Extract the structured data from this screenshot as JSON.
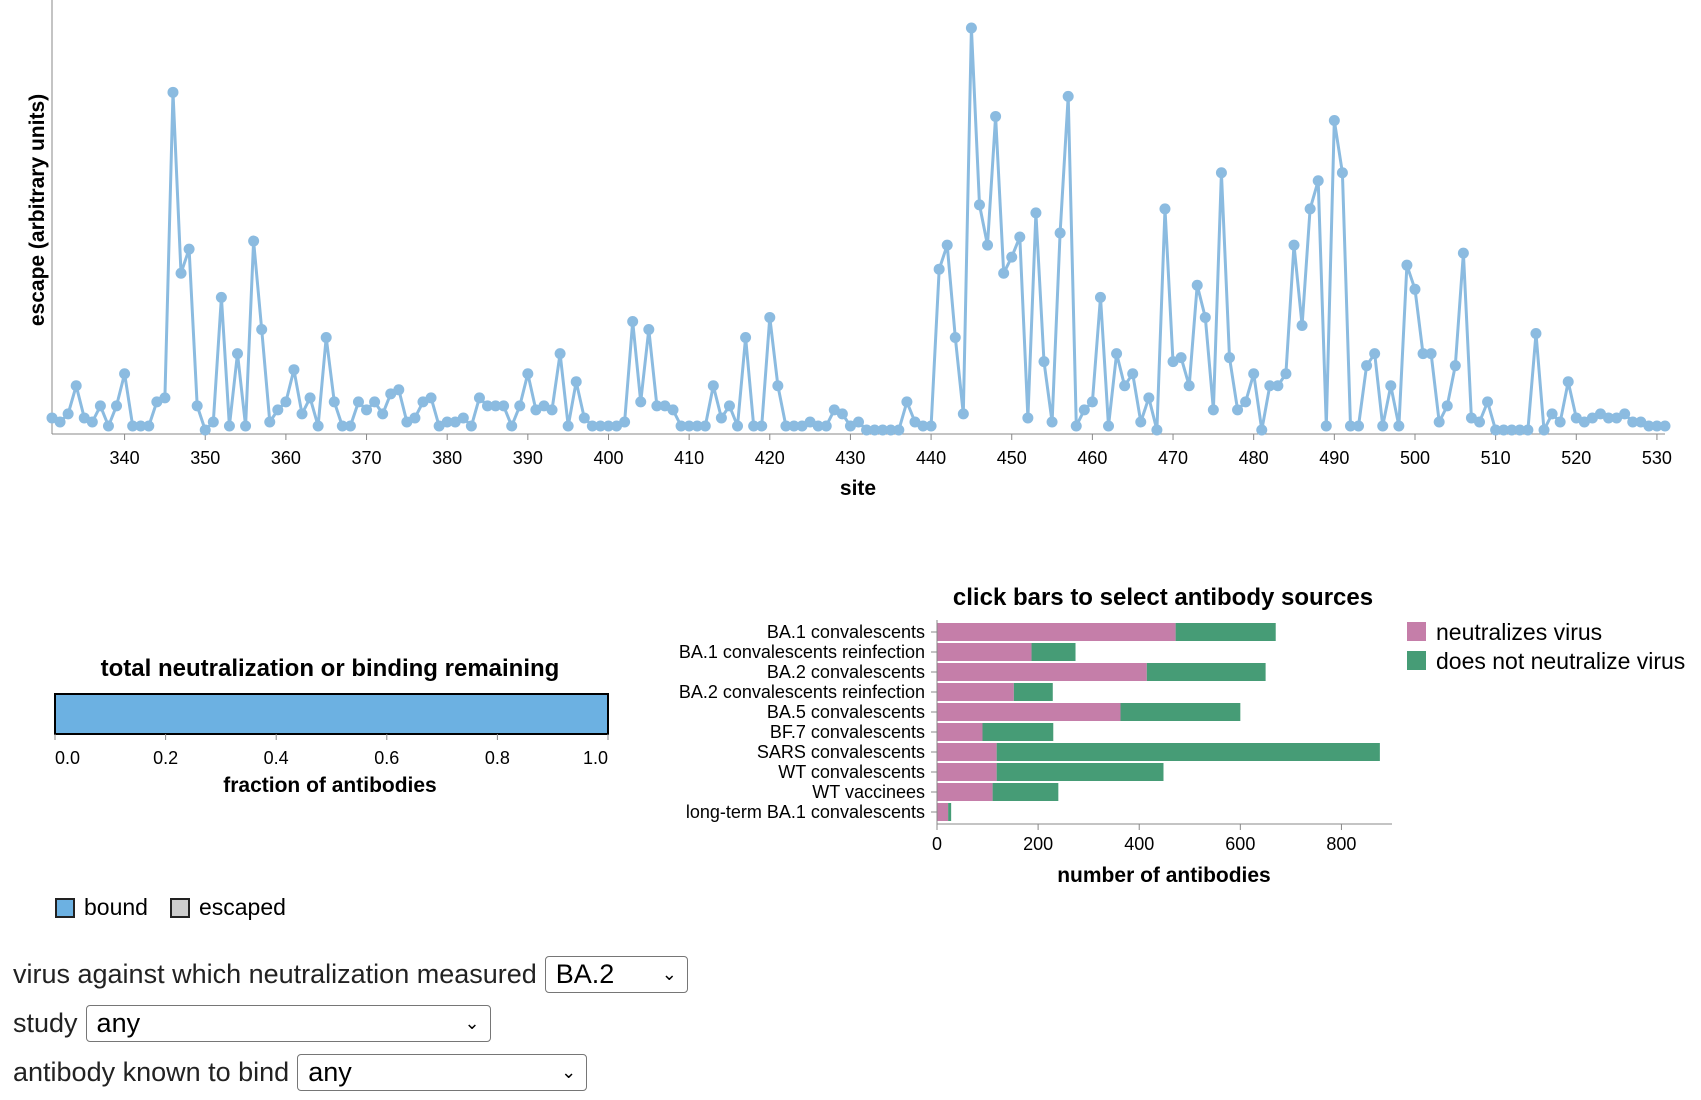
{
  "chart_data": [
    {
      "type": "line",
      "xlabel": "site",
      "ylabel": "escape (arbitrary units)",
      "xlim": [
        331,
        531
      ],
      "ylim": [
        0,
        1
      ],
      "xticks": [
        340,
        350,
        360,
        370,
        380,
        390,
        400,
        410,
        420,
        430,
        440,
        450,
        460,
        470,
        480,
        490,
        500,
        510,
        520,
        530
      ],
      "color": "#8bbbe0",
      "x": [
        331,
        332,
        333,
        334,
        335,
        336,
        337,
        338,
        339,
        340,
        341,
        342,
        343,
        344,
        345,
        346,
        347,
        348,
        349,
        350,
        351,
        352,
        353,
        354,
        355,
        356,
        357,
        358,
        359,
        360,
        361,
        362,
        363,
        364,
        365,
        366,
        367,
        368,
        369,
        370,
        371,
        372,
        373,
        374,
        375,
        376,
        377,
        378,
        379,
        380,
        381,
        382,
        383,
        384,
        385,
        386,
        387,
        388,
        389,
        390,
        391,
        392,
        393,
        394,
        395,
        396,
        397,
        398,
        399,
        400,
        401,
        402,
        403,
        404,
        405,
        406,
        407,
        408,
        409,
        410,
        411,
        412,
        413,
        414,
        415,
        416,
        417,
        418,
        419,
        420,
        421,
        422,
        423,
        424,
        425,
        426,
        427,
        428,
        429,
        430,
        431,
        432,
        433,
        434,
        435,
        436,
        437,
        438,
        439,
        440,
        441,
        442,
        443,
        444,
        445,
        446,
        447,
        448,
        449,
        450,
        451,
        452,
        453,
        454,
        455,
        456,
        457,
        458,
        459,
        460,
        461,
        462,
        463,
        464,
        465,
        466,
        467,
        468,
        469,
        470,
        471,
        472,
        473,
        474,
        475,
        476,
        477,
        478,
        479,
        480,
        481,
        482,
        483,
        484,
        485,
        486,
        487,
        488,
        489,
        490,
        491,
        492,
        493,
        494,
        495,
        496,
        497,
        498,
        499,
        500,
        501,
        502,
        503,
        504,
        505,
        506,
        507,
        508,
        509,
        510,
        511,
        512,
        513,
        514,
        515,
        516,
        517,
        518,
        519,
        520,
        521,
        522,
        523,
        524,
        525,
        526,
        527,
        528,
        529,
        530,
        531
      ],
      "y": [
        0.03,
        0.02,
        0.04,
        0.11,
        0.03,
        0.02,
        0.06,
        0.01,
        0.06,
        0.14,
        0.01,
        0.01,
        0.01,
        0.07,
        0.08,
        0.84,
        0.39,
        0.45,
        0.06,
        0.0,
        0.02,
        0.33,
        0.01,
        0.19,
        0.01,
        0.47,
        0.25,
        0.02,
        0.05,
        0.07,
        0.15,
        0.04,
        0.08,
        0.01,
        0.23,
        0.07,
        0.01,
        0.01,
        0.07,
        0.05,
        0.07,
        0.04,
        0.09,
        0.1,
        0.02,
        0.03,
        0.07,
        0.08,
        0.01,
        0.02,
        0.02,
        0.03,
        0.01,
        0.08,
        0.06,
        0.06,
        0.06,
        0.01,
        0.06,
        0.14,
        0.05,
        0.06,
        0.05,
        0.19,
        0.01,
        0.12,
        0.03,
        0.01,
        0.01,
        0.01,
        0.01,
        0.02,
        0.27,
        0.07,
        0.25,
        0.06,
        0.06,
        0.05,
        0.01,
        0.01,
        0.01,
        0.01,
        0.11,
        0.03,
        0.06,
        0.01,
        0.23,
        0.01,
        0.01,
        0.28,
        0.11,
        0.01,
        0.01,
        0.01,
        0.02,
        0.01,
        0.01,
        0.05,
        0.04,
        0.01,
        0.02,
        0.0,
        0.0,
        0.0,
        0.0,
        0.0,
        0.07,
        0.02,
        0.01,
        0.01,
        0.4,
        0.46,
        0.23,
        0.04,
        1.0,
        0.56,
        0.46,
        0.78,
        0.39,
        0.43,
        0.48,
        0.03,
        0.54,
        0.17,
        0.02,
        0.49,
        0.83,
        0.01,
        0.05,
        0.07,
        0.33,
        0.01,
        0.19,
        0.11,
        0.14,
        0.02,
        0.08,
        0.0,
        0.55,
        0.17,
        0.18,
        0.11,
        0.36,
        0.28,
        0.05,
        0.64,
        0.18,
        0.05,
        0.07,
        0.14,
        0.0,
        0.11,
        0.11,
        0.14,
        0.46,
        0.26,
        0.55,
        0.62,
        0.01,
        0.77,
        0.64,
        0.01,
        0.01,
        0.16,
        0.19,
        0.01,
        0.11,
        0.01,
        0.41,
        0.35,
        0.19,
        0.19,
        0.02,
        0.06,
        0.16,
        0.44,
        0.03,
        0.02,
        0.07,
        0.0,
        0.0,
        0.0,
        0.0,
        0.0,
        0.24,
        0.0,
        0.04,
        0.02,
        0.12,
        0.03,
        0.02,
        0.03,
        0.04,
        0.03,
        0.03,
        0.04,
        0.02,
        0.02,
        0.01,
        0.01,
        0.01
      ]
    },
    {
      "type": "bar",
      "orientation": "horizontal",
      "stacked": true,
      "title": "click bars to select antibody sources",
      "xlabel": "number of antibodies",
      "xlim": [
        0,
        900
      ],
      "xticks": [
        0,
        200,
        400,
        600,
        800
      ],
      "legend_position": "right",
      "categories": [
        "BA.1 convalescents",
        "BA.1 convalescents reinfection",
        "BA.2 convalescents",
        "BA.2 convalescents reinfection",
        "BA.5 convalescents",
        "BF.7 convalescents",
        "SARS convalescents",
        "WT convalescents",
        "WT vaccinees",
        "long-term BA.1 convalescents"
      ],
      "series": [
        {
          "name": "neutralizes virus",
          "color": "#c57ea9",
          "values": [
            472,
            187,
            415,
            152,
            363,
            90,
            118,
            118,
            110,
            22
          ]
        },
        {
          "name": "does not neutralize virus",
          "color": "#469c76",
          "values": [
            198,
            87,
            235,
            77,
            237,
            140,
            758,
            330,
            130,
            6
          ]
        }
      ]
    },
    {
      "type": "bar",
      "orientation": "horizontal",
      "stacked": true,
      "title": "total neutralization or binding remaining",
      "xlabel": "fraction of antibodies",
      "xlim": [
        0,
        1
      ],
      "xticks": [
        "0.0",
        "0.2",
        "0.4",
        "0.6",
        "0.8",
        "1.0"
      ],
      "series": [
        {
          "name": "bound",
          "color": "#6cb1e2",
          "values": [
            1.0
          ]
        },
        {
          "name": "escaped",
          "color": "#cccccc",
          "values": [
            0.0
          ]
        }
      ]
    }
  ],
  "controls": {
    "virus_label": "virus against which neutralization measured",
    "virus_value": "BA.2",
    "study_label": "study",
    "study_value": "any",
    "antibody_label": "antibody known to bind",
    "antibody_value": "any"
  }
}
